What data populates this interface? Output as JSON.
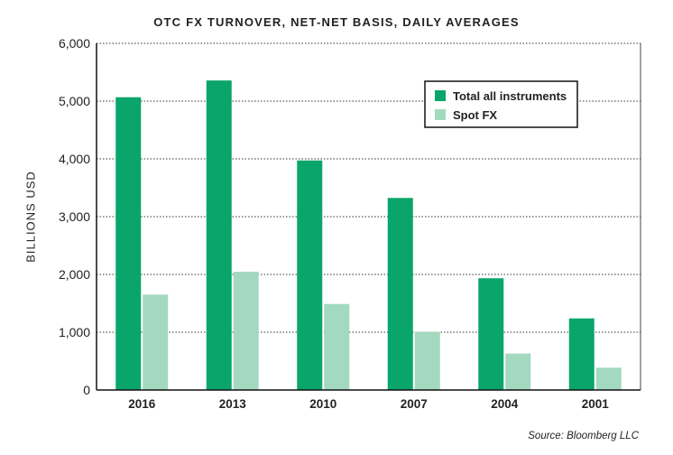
{
  "chart_data": {
    "type": "bar",
    "title": "OTC FX TURNOVER, NET-NET BASIS, DAILY AVERAGES",
    "xlabel": "",
    "ylabel": "BILLIONS USD",
    "categories": [
      "2016",
      "2013",
      "2010",
      "2007",
      "2004",
      "2001"
    ],
    "series": [
      {
        "name": "Total all instruments",
        "values": [
          5067,
          5357,
          3973,
          3324,
          1934,
          1239
        ],
        "color": "#0aa56a"
      },
      {
        "name": "Spot FX",
        "values": [
          1652,
          2047,
          1489,
          1005,
          631,
          386
        ],
        "color": "#a3d9bf"
      }
    ],
    "ylim": [
      0,
      6000
    ],
    "yticks": [
      "0",
      "1,000",
      "2,000",
      "3,000",
      "4,000",
      "5,000",
      "6,000"
    ],
    "grid": true,
    "legend_position": "top-right",
    "source": "Source: Bloomberg LLC"
  }
}
